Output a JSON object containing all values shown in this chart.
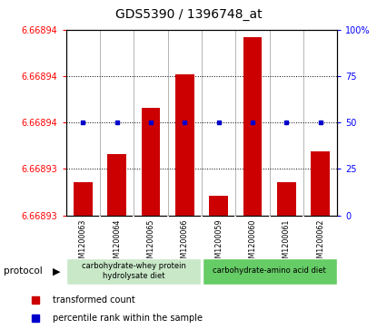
{
  "title": "GDS5390 / 1396748_at",
  "samples": [
    "GSM1200063",
    "GSM1200064",
    "GSM1200065",
    "GSM1200066",
    "GSM1200059",
    "GSM1200060",
    "GSM1200061",
    "GSM1200062"
  ],
  "bar_top": [
    6.6689296,
    6.6689336,
    6.66894,
    6.6689448,
    6.6689278,
    6.66895,
    6.6689296,
    6.668934
  ],
  "ylim_min": 6.668925,
  "ylim_max": 6.668951,
  "right_yticks": [
    0,
    25,
    50,
    75,
    100
  ],
  "left_ytick_positions": [
    6.668925,
    6.6689315,
    6.668938,
    6.6689445,
    6.668951
  ],
  "left_ytick_labels": [
    "6.66893",
    "6.66893",
    "6.66894",
    "6.66894",
    "6.66894"
  ],
  "bar_color": "#cc0000",
  "marker_color": "#0000cc",
  "pct_rank": 50,
  "group1_label": "carbohydrate-whey protein\nhydrolysate diet",
  "group2_label": "carbohydrate-amino acid diet",
  "group1_color": "#c8e8c8",
  "group2_color": "#66cc66",
  "plot_bg": "#ffffff",
  "gray_bg": "#cccccc",
  "title_fontsize": 10,
  "tick_fontsize": 7,
  "legend_bar_label": "transformed count",
  "legend_marker_label": "percentile rank within the sample"
}
